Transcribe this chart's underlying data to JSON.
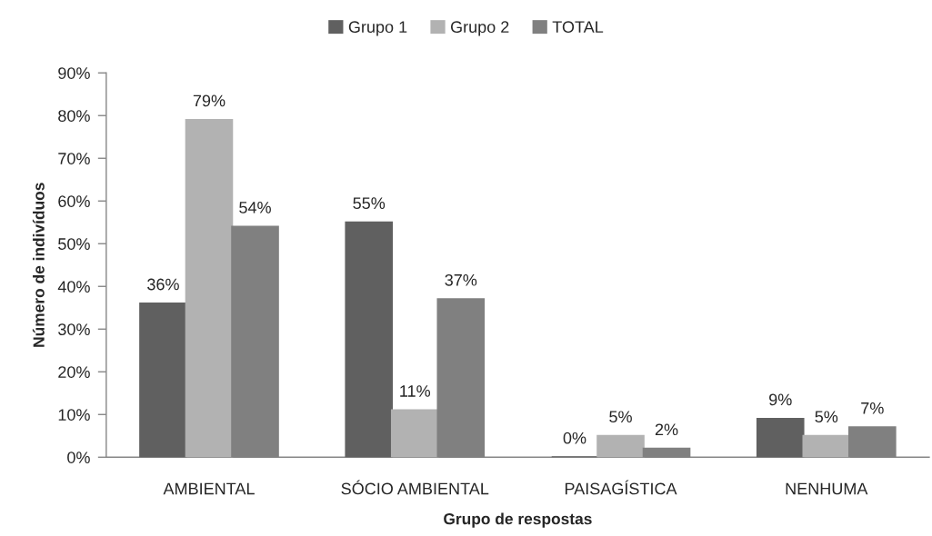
{
  "chart_data": {
    "type": "bar",
    "categories": [
      "AMBIENTAL",
      "SÓCIO AMBIENTAL",
      "PAISAGÍSTICA",
      "NENHUMA"
    ],
    "series": [
      {
        "name": "Grupo 1",
        "color": "#606060",
        "values": [
          36,
          55,
          0,
          9
        ],
        "value_labels": [
          "36%",
          "55%",
          "0%",
          "9%"
        ]
      },
      {
        "name": "Grupo 2",
        "color": "#b2b2b2",
        "values": [
          79,
          11,
          5,
          5
        ],
        "value_labels": [
          "79%",
          "11%",
          "5%",
          "5%"
        ]
      },
      {
        "name": "TOTAL",
        "color": "#808080",
        "values": [
          54,
          37,
          2,
          7
        ],
        "value_labels": [
          "54%",
          "37%",
          "2%",
          "7%"
        ]
      }
    ],
    "xlabel": "Grupo de respostas",
    "ylabel": "Número de indivíduos",
    "ylim": [
      0,
      90
    ],
    "yticks": [
      {
        "value": 0,
        "label": "0%"
      },
      {
        "value": 10,
        "label": "10%"
      },
      {
        "value": 20,
        "label": "20%"
      },
      {
        "value": 30,
        "label": "30%"
      },
      {
        "value": 40,
        "label": "40%"
      },
      {
        "value": 50,
        "label": "50%"
      },
      {
        "value": 60,
        "label": "60%"
      },
      {
        "value": 70,
        "label": "70%"
      },
      {
        "value": 80,
        "label": "80%"
      },
      {
        "value": 90,
        "label": "90%"
      }
    ],
    "legend": "top",
    "grid": false
  }
}
